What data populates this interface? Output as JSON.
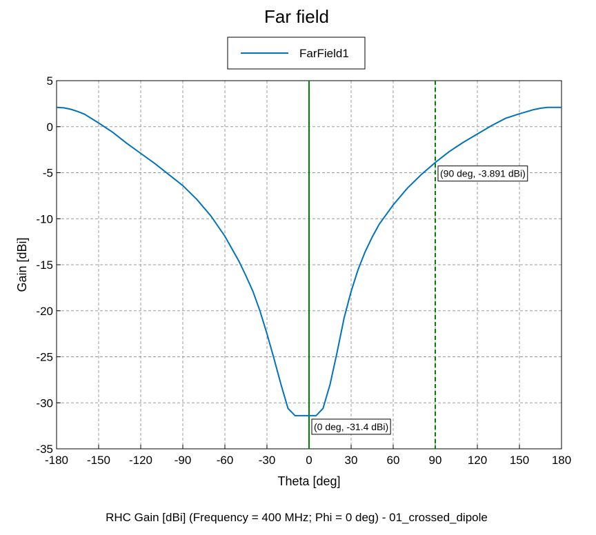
{
  "chart_data": {
    "type": "line",
    "title": "Far field",
    "xlabel": "Theta [deg]",
    "ylabel": "Gain [dBi]",
    "caption": "RHC Gain [dBi] (Frequency = 400 MHz; Phi = 0 deg) - 01_crossed_dipole",
    "xlim": [
      -180,
      180
    ],
    "ylim": [
      -35,
      5
    ],
    "xticks": [
      -180,
      -150,
      -120,
      -90,
      -60,
      -30,
      0,
      30,
      60,
      90,
      120,
      150,
      180
    ],
    "yticks": [
      5,
      0,
      -5,
      -10,
      -15,
      -20,
      -25,
      -30,
      -35
    ],
    "grid": true,
    "legend_position": "top-center",
    "series": [
      {
        "name": "FarField1",
        "color": "#0072bd",
        "x": [
          -180,
          -175,
          -170,
          -165,
          -160,
          -150,
          -140,
          -130,
          -120,
          -110,
          -100,
          -90,
          -80,
          -70,
          -60,
          -50,
          -45,
          -40,
          -35,
          -30,
          -25,
          -20,
          -15,
          -10,
          -5,
          0,
          5,
          10,
          15,
          20,
          25,
          30,
          35,
          40,
          45,
          50,
          60,
          70,
          80,
          90,
          100,
          110,
          120,
          130,
          140,
          150,
          160,
          165,
          170,
          175,
          180
        ],
        "y": [
          2.1,
          2.05,
          1.9,
          1.65,
          1.35,
          0.4,
          -0.6,
          -1.8,
          -2.9,
          -4.0,
          -5.2,
          -6.4,
          -7.9,
          -9.7,
          -11.9,
          -14.6,
          -16.2,
          -17.9,
          -20.0,
          -22.5,
          -25.2,
          -28.0,
          -30.6,
          -31.4,
          -31.4,
          -31.4,
          -31.4,
          -30.6,
          -28.0,
          -24.5,
          -20.8,
          -17.9,
          -15.5,
          -13.6,
          -12.0,
          -10.6,
          -8.5,
          -6.7,
          -5.2,
          -3.891,
          -2.7,
          -1.7,
          -0.8,
          0.1,
          0.9,
          1.4,
          1.85,
          2.0,
          2.1,
          2.1,
          2.1
        ]
      }
    ],
    "markers": [
      {
        "x": 0,
        "label": "(0 deg, -31.4 dBi)",
        "color": "#008000",
        "style": "solid"
      },
      {
        "x": 90,
        "label": "(90 deg, -3.891 dBi)",
        "color": "#008000",
        "style": "dashed"
      }
    ]
  }
}
